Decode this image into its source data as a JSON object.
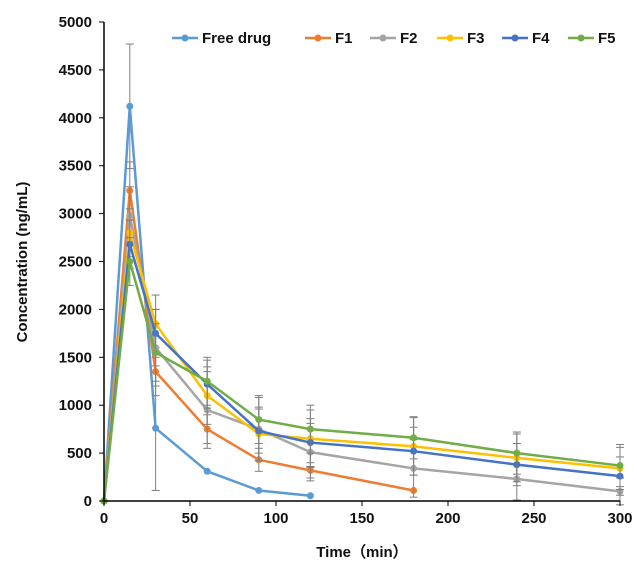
{
  "chart_data": {
    "type": "line",
    "title": "",
    "xlabel": "Time（min）",
    "ylabel": "Concentration (ng/mL)",
    "xlim": [
      0,
      300
    ],
    "ylim": [
      0,
      5000
    ],
    "x_ticks": [
      "0",
      "50",
      "100",
      "150",
      "200",
      "250",
      "300"
    ],
    "y_ticks": [
      "0",
      "500",
      "1000",
      "1500",
      "2000",
      "2500",
      "3000",
      "3500",
      "4000",
      "4500",
      "5000"
    ],
    "grid": false,
    "legend_position": "top",
    "series": [
      {
        "name": "Free drug",
        "color": "#5B9BD5",
        "x": [
          0,
          15,
          30,
          60,
          90,
          120
        ],
        "y": [
          0,
          4120,
          760,
          310,
          110,
          55
        ],
        "err": [
          0,
          650,
          650,
          0,
          0,
          0
        ]
      },
      {
        "name": "F1",
        "color": "#ED7D31",
        "x": [
          0,
          15,
          30,
          60,
          90,
          120,
          180
        ],
        "y": [
          0,
          3240,
          1350,
          750,
          430,
          320,
          110
        ],
        "err": [
          0,
          300,
          250,
          150,
          120,
          80,
          0
        ]
      },
      {
        "name": "F2",
        "color": "#A5A5A5",
        "x": [
          0,
          15,
          30,
          60,
          90,
          120,
          180,
          240,
          300
        ],
        "y": [
          0,
          2980,
          1600,
          950,
          750,
          510,
          340,
          230,
          100
        ],
        "err": [
          0,
          300,
          400,
          400,
          330,
          300,
          300,
          220,
          140
        ]
      },
      {
        "name": "F3",
        "color": "#FFC000",
        "x": [
          0,
          15,
          30,
          60,
          90,
          120,
          180,
          240,
          300
        ],
        "y": [
          0,
          2800,
          1850,
          1100,
          700,
          650,
          570,
          450,
          340
        ],
        "err": [
          0,
          250,
          300,
          300,
          280,
          300,
          300,
          250,
          220
        ]
      },
      {
        "name": "F4",
        "color": "#4472C4",
        "x": [
          0,
          15,
          30,
          60,
          90,
          120,
          180,
          240,
          300
        ],
        "y": [
          0,
          2680,
          1750,
          1220,
          730,
          610,
          520,
          380,
          260
        ],
        "err": [
          0,
          250,
          250,
          250,
          230,
          250,
          250,
          220,
          200
        ]
      },
      {
        "name": "F5",
        "color": "#70AD47",
        "x": [
          0,
          15,
          30,
          60,
          90,
          120,
          180,
          240,
          300
        ],
        "y": [
          0,
          2500,
          1550,
          1250,
          850,
          750,
          660,
          500,
          370
        ],
        "err": [
          0,
          250,
          300,
          250,
          250,
          250,
          220,
          220,
          220
        ]
      }
    ]
  }
}
